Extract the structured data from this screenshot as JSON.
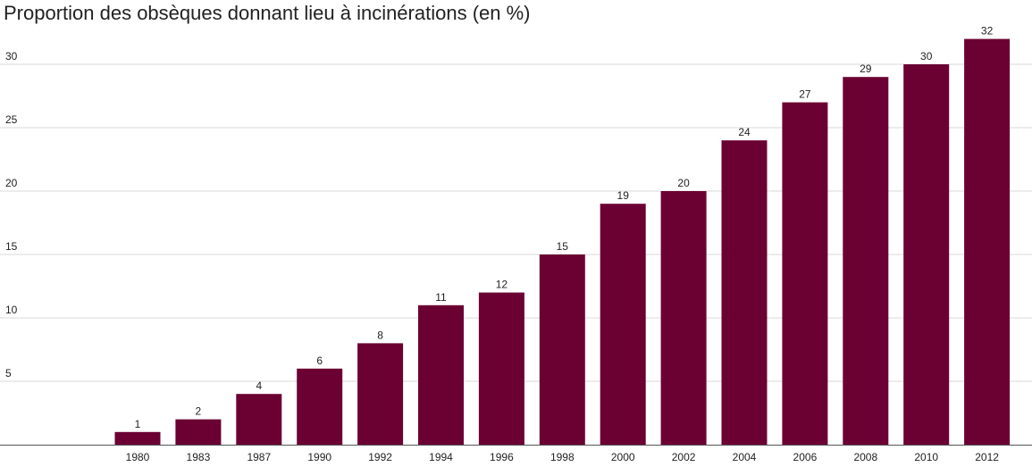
{
  "chart_data": {
    "type": "bar",
    "title": "Proportion des obsèques donnant lieu à incinérations (en %)",
    "xlabel": "",
    "ylabel": "",
    "categories": [
      "1980",
      "1983",
      "1987",
      "1990",
      "1992",
      "1994",
      "1996",
      "1998",
      "2000",
      "2002",
      "2004",
      "2006",
      "2008",
      "2010",
      "2012"
    ],
    "values": [
      1,
      2,
      4,
      6,
      8,
      11,
      12,
      15,
      19,
      20,
      24,
      27,
      29,
      30,
      32
    ],
    "ylim": [
      0,
      32
    ],
    "yticks": [
      5,
      10,
      15,
      20,
      25,
      30
    ],
    "grid": true,
    "legend": "none",
    "bar_color": "#6b0033",
    "grid_color": "#d9d9d9",
    "axis_color": "#555555",
    "data_labels": true
  }
}
